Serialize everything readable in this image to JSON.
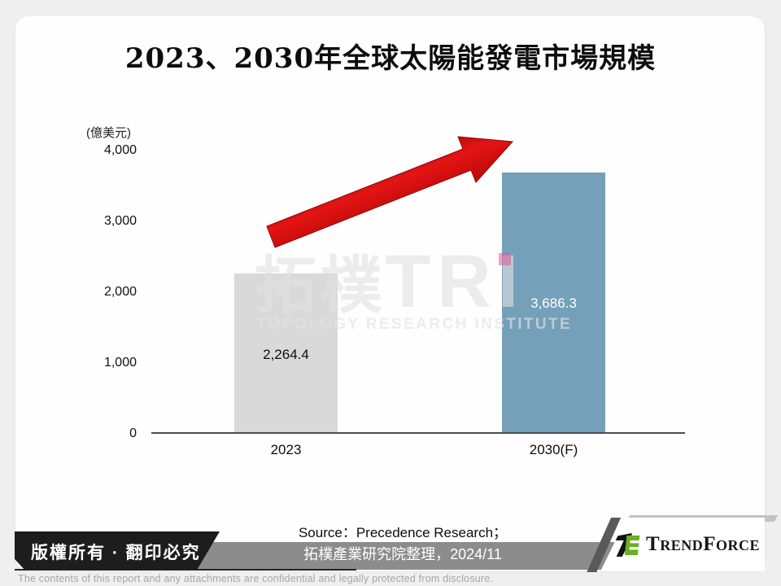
{
  "title": "2023、2030年全球太陽能發電市場規模",
  "chart_data": {
    "type": "bar",
    "title": "2023、2030年全球太陽能發電市場規模",
    "unit_label": "(億美元)",
    "categories": [
      "2023",
      "2030(F)"
    ],
    "values": [
      2264.4,
      3686.3
    ],
    "value_labels": [
      "2,264.4",
      "3,686.3"
    ],
    "bar_colors": [
      "#d9d9d9",
      "#74a0ba"
    ],
    "value_label_colors": [
      "#0d0d0d",
      "#ffffff"
    ],
    "ylim": [
      0,
      4000
    ],
    "ytick_step": 1000,
    "yticks": [
      "0",
      "1,000",
      "2,000",
      "3,000",
      "4,000"
    ],
    "grid": false,
    "legend": false,
    "annotations": [
      "red growth arrow pointing up-right",
      "small pink marker square at left edge of 2030 bar"
    ]
  },
  "watermark": {
    "cjk": "拓樸",
    "latin": "TRI",
    "subtitle": "TOPOLOGY RESEARCH INSTITUTE"
  },
  "footer": {
    "copyright": "版權所有 · 翻印必究",
    "source_line1": "Source：Precedence Research；",
    "source_line2": "拓樸產業研究院整理，2024/11",
    "brand": "TrendForce",
    "disclaimer": "The contents of this report and any attachments are confidential and legally protected from disclosure."
  },
  "colors": {
    "page_background": "#efefef",
    "card_background": "#fefefe",
    "bar_2023": "#d9d9d9",
    "bar_2030": "#74a0ba",
    "arrow_red": "#cf0f0f",
    "banner_black": "#1d1d1d",
    "source_bar_gray": "#8c8c8c",
    "brand_green": "#6ab023"
  }
}
